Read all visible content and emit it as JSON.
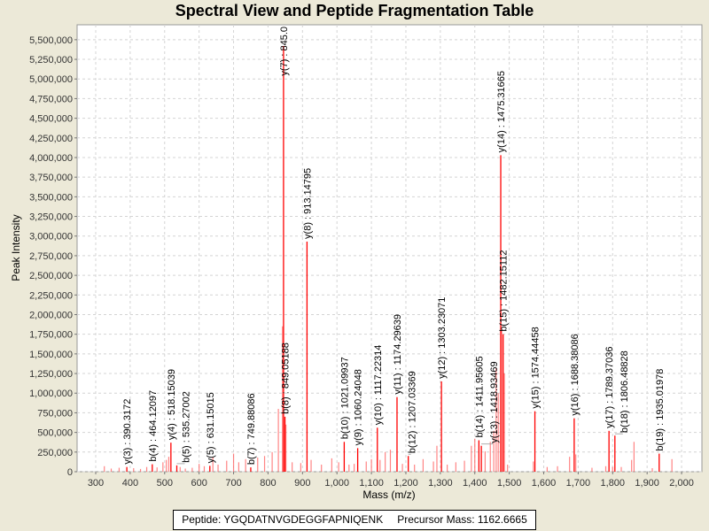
{
  "chart_data": {
    "type": "bar",
    "title": "Spectral View and Peptide Fragmentation Table",
    "xlabel": "Mass (m/z)",
    "ylabel": "Peak Intensity",
    "xlim": [
      246,
      2059
    ],
    "ylim": [
      0,
      5690000
    ],
    "xticks": [
      300,
      400,
      500,
      600,
      700,
      800,
      900,
      1000,
      1100,
      1200,
      1300,
      1400,
      1500,
      1600,
      1700,
      1800,
      1900,
      2000
    ],
    "xtick_labels": [
      "300",
      "400",
      "500",
      "600",
      "700",
      "800",
      "900",
      "1,000",
      "1,100",
      "1,200",
      "1,300",
      "1,400",
      "1,500",
      "1,600",
      "1,700",
      "1,800",
      "1,900",
      "2,000"
    ],
    "yticks": [
      0,
      250000,
      500000,
      750000,
      1000000,
      1250000,
      1500000,
      1750000,
      2000000,
      2250000,
      2500000,
      2750000,
      3000000,
      3250000,
      3500000,
      3750000,
      4000000,
      4250000,
      4500000,
      4750000,
      5000000,
      5250000,
      5500000
    ],
    "ytick_labels": [
      "0",
      "250,000",
      "500,000",
      "750,000",
      "1,000,000",
      "1,250,000",
      "1,500,000",
      "1,750,000",
      "2,000,000",
      "2,250,000",
      "2,500,000",
      "2,750,000",
      "3,000,000",
      "3,250,000",
      "3,500,000",
      "3,750,000",
      "4,000,000",
      "4,250,000",
      "4,500,000",
      "4,750,000",
      "5,000,000",
      "5,250,000",
      "5,500,000"
    ],
    "grid": true,
    "annotated_peaks": [
      {
        "label": "y(3) : 390.3172",
        "mz": 390.3,
        "intensity": 60000
      },
      {
        "label": "b(4) : 464.12097",
        "mz": 464.1,
        "intensity": 95000
      },
      {
        "label": "y(4) : 518.15039",
        "mz": 518.2,
        "intensity": 370000
      },
      {
        "label": "b(5) : 535.27002",
        "mz": 535.3,
        "intensity": 80000
      },
      {
        "label": "y(5) : 631.15015",
        "mz": 631.2,
        "intensity": 75000
      },
      {
        "label": "b(7) : 749.88086",
        "mz": 749.9,
        "intensity": 55000
      },
      {
        "label": "b(8) : 849.05188",
        "mz": 849.1,
        "intensity": 700000
      },
      {
        "label": "y(7) : 845.0",
        "mz": 845.0,
        "intensity": 5420000
      },
      {
        "label": "y(8) : 913.14795",
        "mz": 913.1,
        "intensity": 2930000
      },
      {
        "label": "b(10) : 1021.09937",
        "mz": 1021.1,
        "intensity": 380000
      },
      {
        "label": "y(9) : 1060.24048",
        "mz": 1060.2,
        "intensity": 300000
      },
      {
        "label": "y(10) : 1117.22314",
        "mz": 1117.2,
        "intensity": 560000
      },
      {
        "label": "y(11) : 1174.29639",
        "mz": 1174.3,
        "intensity": 950000
      },
      {
        "label": "b(12) : 1207.03369",
        "mz": 1207.0,
        "intensity": 200000
      },
      {
        "label": "y(12) : 1303.23071",
        "mz": 1303.2,
        "intensity": 1150000
      },
      {
        "label": "b(14) : 1411.95605",
        "mz": 1411.9,
        "intensity": 400000
      },
      {
        "label": "y(13) : 1418.93469",
        "mz": 1418.9,
        "intensity": 330000
      },
      {
        "label": "y(14) : 1475.31665",
        "mz": 1475.3,
        "intensity": 4030000
      },
      {
        "label": "b(15) : 1482.15112",
        "mz": 1482.2,
        "intensity": 1750000
      },
      {
        "label": "y(15) : 1574.44458",
        "mz": 1574.4,
        "intensity": 770000
      },
      {
        "label": "y(16) : 1688.38086",
        "mz": 1688.4,
        "intensity": 680000
      },
      {
        "label": "y(17) : 1789.37036",
        "mz": 1789.4,
        "intensity": 520000
      },
      {
        "label": "b(18) : 1806.48828",
        "mz": 1806.5,
        "intensity": 460000
      },
      {
        "label": "b(19) : 1935.01978",
        "mz": 1935.0,
        "intensity": 230000
      }
    ],
    "noise_peaks": [
      [
        325,
        70000
      ],
      [
        345,
        40000
      ],
      [
        368,
        50000
      ],
      [
        410,
        45000
      ],
      [
        430,
        35000
      ],
      [
        448,
        60000
      ],
      [
        478,
        55000
      ],
      [
        495,
        120000
      ],
      [
        505,
        150000
      ],
      [
        512,
        190000
      ],
      [
        545,
        60000
      ],
      [
        560,
        40000
      ],
      [
        580,
        50000
      ],
      [
        600,
        100000
      ],
      [
        615,
        70000
      ],
      [
        640,
        180000
      ],
      [
        655,
        90000
      ],
      [
        680,
        140000
      ],
      [
        700,
        230000
      ],
      [
        715,
        120000
      ],
      [
        735,
        160000
      ],
      [
        770,
        180000
      ],
      [
        790,
        200000
      ],
      [
        812,
        250000
      ],
      [
        830,
        800000
      ],
      [
        842,
        1850000
      ],
      [
        852,
        600000
      ],
      [
        870,
        120000
      ],
      [
        895,
        110000
      ],
      [
        925,
        150000
      ],
      [
        955,
        90000
      ],
      [
        985,
        170000
      ],
      [
        1005,
        120000
      ],
      [
        1035,
        90000
      ],
      [
        1050,
        100000
      ],
      [
        1085,
        130000
      ],
      [
        1100,
        160000
      ],
      [
        1125,
        150000
      ],
      [
        1140,
        250000
      ],
      [
        1155,
        280000
      ],
      [
        1190,
        100000
      ],
      [
        1225,
        90000
      ],
      [
        1250,
        160000
      ],
      [
        1280,
        130000
      ],
      [
        1290,
        330000
      ],
      [
        1320,
        90000
      ],
      [
        1345,
        120000
      ],
      [
        1370,
        140000
      ],
      [
        1390,
        330000
      ],
      [
        1400,
        420000
      ],
      [
        1430,
        260000
      ],
      [
        1445,
        380000
      ],
      [
        1455,
        520000
      ],
      [
        1462,
        1320000
      ],
      [
        1468,
        1000000
      ],
      [
        1478,
        1800000
      ],
      [
        1486,
        1250000
      ],
      [
        1495,
        90000
      ],
      [
        1570,
        130000
      ],
      [
        1610,
        60000
      ],
      [
        1640,
        70000
      ],
      [
        1675,
        190000
      ],
      [
        1693,
        220000
      ],
      [
        1740,
        50000
      ],
      [
        1780,
        70000
      ],
      [
        1800,
        60000
      ],
      [
        1825,
        60000
      ],
      [
        1855,
        150000
      ],
      [
        1862,
        380000
      ],
      [
        1915,
        45000
      ],
      [
        1972,
        160000
      ]
    ]
  },
  "footer": {
    "peptide": "Peptide: YGQDATNVGDEGGFAPNIQENK",
    "precursor": "Precursor Mass: 1162.6665"
  },
  "colors": {
    "peak": "#ff0000",
    "background": "#ece9d8",
    "plot": "#ffffff"
  }
}
